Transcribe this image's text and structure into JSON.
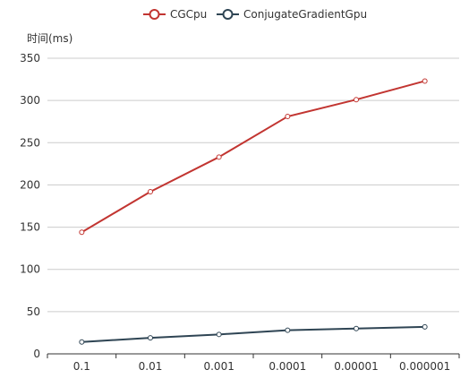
{
  "chart_data": {
    "type": "line",
    "title": "",
    "xlabel": "",
    "ylabel": "时间(ms)",
    "categories": [
      "0.1",
      "0.01",
      "0.001",
      "0.0001",
      "0.00001",
      "0.000001"
    ],
    "ylim": [
      0,
      350
    ],
    "yticks": [
      0,
      50,
      100,
      150,
      200,
      250,
      300,
      350
    ],
    "grid": true,
    "legend_position": "top-center",
    "series": [
      {
        "name": "CGCpu",
        "color": "#c23531",
        "values": [
          144,
          192,
          233,
          281,
          301,
          323
        ]
      },
      {
        "name": "ConjugateGradientGpu",
        "color": "#2f4554",
        "values": [
          14,
          19,
          23,
          28,
          30,
          32
        ]
      }
    ]
  }
}
